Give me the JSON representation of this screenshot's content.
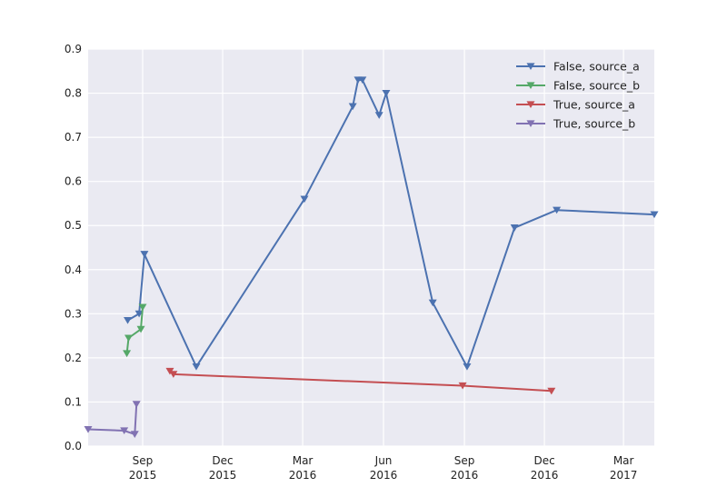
{
  "chart_data": {
    "type": "line",
    "title": "",
    "xlabel": "",
    "ylabel": "",
    "xlim": [
      "2015-07-01",
      "2017-04-05"
    ],
    "ylim": [
      0,
      0.9
    ],
    "grid": true,
    "legend_position": "top-right",
    "marker": "triangle-down",
    "x_ticks": [
      {
        "date": "2015-09-01",
        "label": [
          "Sep",
          "2015"
        ]
      },
      {
        "date": "2015-12-01",
        "label": [
          "Dec",
          "2015"
        ]
      },
      {
        "date": "2016-03-01",
        "label": [
          "Mar",
          "2016"
        ]
      },
      {
        "date": "2016-06-01",
        "label": [
          "Jun",
          "2016"
        ]
      },
      {
        "date": "2016-09-01",
        "label": [
          "Sep",
          "2016"
        ]
      },
      {
        "date": "2016-12-01",
        "label": [
          "Dec",
          "2016"
        ]
      },
      {
        "date": "2017-03-01",
        "label": [
          "Mar",
          "2017"
        ]
      }
    ],
    "y_ticks": [
      0.0,
      0.1,
      0.2,
      0.3,
      0.4,
      0.5,
      0.6,
      0.7,
      0.8,
      0.9
    ],
    "y_tick_labels": [
      "0.0",
      "0.1",
      "0.2",
      "0.3",
      "0.4",
      "0.5",
      "0.6",
      "0.7",
      "0.8",
      "0.9"
    ],
    "series": [
      {
        "name": "False, source_a",
        "color": "#4c72b0",
        "points": [
          {
            "x": "2015-08-15",
            "y": 0.285
          },
          {
            "x": "2015-08-28",
            "y": 0.3
          },
          {
            "x": "2015-09-03",
            "y": 0.435
          },
          {
            "x": "2015-11-01",
            "y": 0.18
          },
          {
            "x": "2016-03-03",
            "y": 0.56
          },
          {
            "x": "2016-04-27",
            "y": 0.77
          },
          {
            "x": "2016-05-03",
            "y": 0.83
          },
          {
            "x": "2016-05-08",
            "y": 0.83
          },
          {
            "x": "2016-05-27",
            "y": 0.75
          },
          {
            "x": "2016-06-04",
            "y": 0.8
          },
          {
            "x": "2016-07-27",
            "y": 0.325
          },
          {
            "x": "2016-09-04",
            "y": 0.18
          },
          {
            "x": "2016-10-28",
            "y": 0.495
          },
          {
            "x": "2016-12-15",
            "y": 0.535
          },
          {
            "x": "2017-04-05",
            "y": 0.525
          }
        ]
      },
      {
        "name": "False, source_b",
        "color": "#55a868",
        "points": [
          {
            "x": "2015-08-14",
            "y": 0.21
          },
          {
            "x": "2015-08-16",
            "y": 0.245
          },
          {
            "x": "2015-08-30",
            "y": 0.265
          },
          {
            "x": "2015-09-01",
            "y": 0.315
          }
        ]
      },
      {
        "name": "True, source_a",
        "color": "#c44e52",
        "points": [
          {
            "x": "2015-10-02",
            "y": 0.17
          },
          {
            "x": "2015-10-06",
            "y": 0.163
          },
          {
            "x": "2016-08-30",
            "y": 0.137
          },
          {
            "x": "2016-12-09",
            "y": 0.125
          }
        ]
      },
      {
        "name": "True, source_b",
        "color": "#8172b2",
        "points": [
          {
            "x": "2015-07-01",
            "y": 0.038
          },
          {
            "x": "2015-08-11",
            "y": 0.035
          },
          {
            "x": "2015-08-23",
            "y": 0.027
          },
          {
            "x": "2015-08-25",
            "y": 0.095
          }
        ]
      }
    ]
  }
}
